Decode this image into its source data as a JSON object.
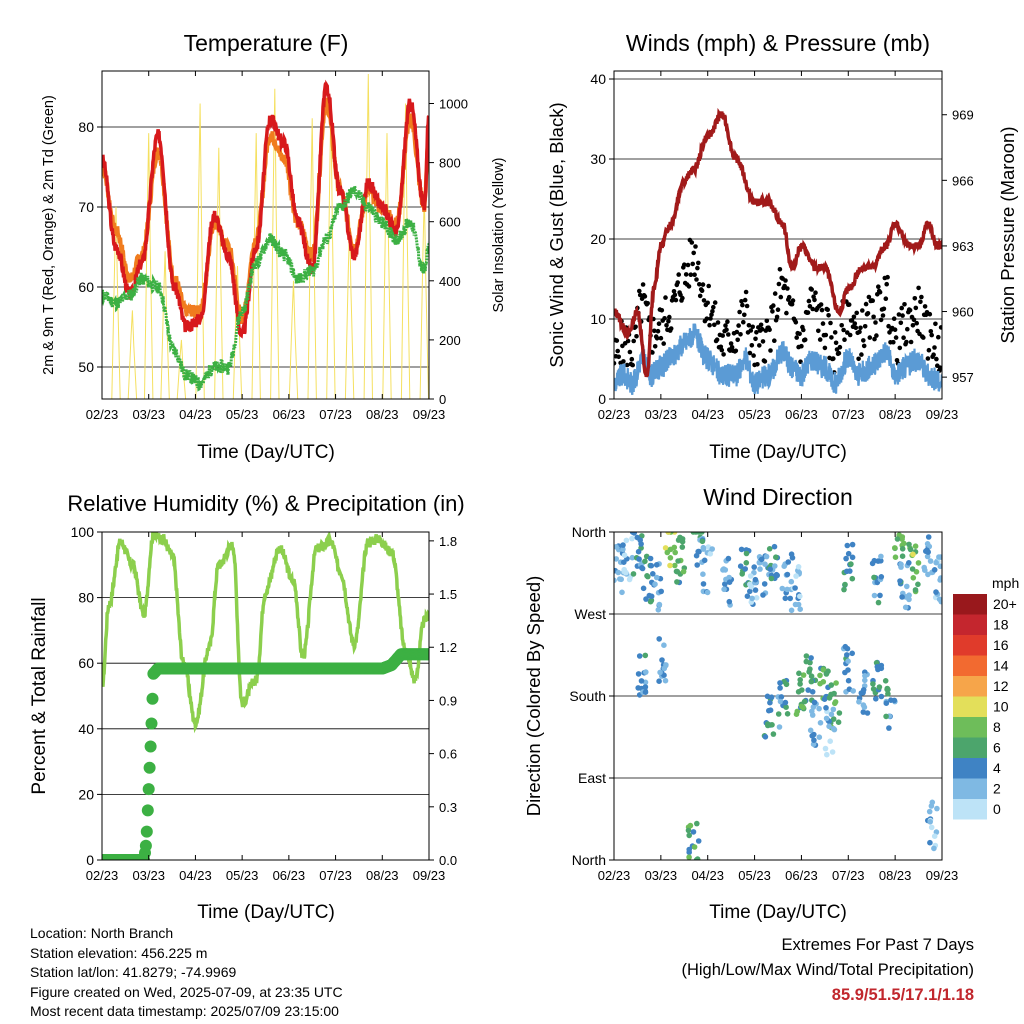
{
  "x_ticks": [
    "02/23",
    "03/23",
    "04/23",
    "05/23",
    "06/23",
    "07/23",
    "08/23",
    "09/23"
  ],
  "colors": {
    "temp_2m": "#d7191c",
    "temp_9m": "#f07c1e",
    "dewpoint": "#3cb043",
    "insolation": "#f5e060",
    "gust": "#000000",
    "wind": "#5b9bd5",
    "pressure": "#a11a1a",
    "rh": "#8ccf4d",
    "precip": "#3cb043",
    "extremes_text": "#c1272d"
  },
  "info": {
    "location": "Location: North Branch",
    "elevation": "Station elevation: 456.225 m",
    "latlon": "Station lat/lon: 41.8279; -74.9969",
    "created": "Figure created on Wed, 2025-07-09, at 23:35 UTC",
    "recent": "Most recent data timestamp: 2025/07/09 23:15:00"
  },
  "extremes": {
    "title": "Extremes For Past 7 Days",
    "subtitle": "(High/Low/Max Wind/Total Precipitation)",
    "values": "85.9/51.5/17.1/1.18"
  },
  "chart_data": [
    {
      "type": "line",
      "title": "Temperature (F)",
      "xlabel": "Time (Day/UTC)",
      "ylabel": "2m & 9m T (Red, Orange) & 2m Td (Green)",
      "y2label": "Solar Insolation (Yellow)",
      "ylim": [
        46,
        87
      ],
      "y2lim": [
        0,
        1110
      ],
      "yticks": [
        50,
        60,
        70,
        80
      ],
      "y2ticks": [
        0,
        200,
        400,
        600,
        800,
        1000
      ],
      "grid": true,
      "series": [
        {
          "key": "temp_2m",
          "x": [
            0,
            0.3,
            0.6,
            0.85,
            1.2,
            1.55,
            1.8,
            2.1,
            2.4,
            2.7,
            3.0,
            3.3,
            3.6,
            3.9,
            4.2,
            4.5,
            4.8,
            5.1,
            5.4,
            5.7,
            6.0,
            6.3,
            6.6,
            6.9,
            7.0
          ],
          "y": [
            76,
            65,
            59,
            63,
            79,
            60,
            55,
            56,
            69,
            64,
            54,
            65,
            81,
            78,
            68,
            62,
            85,
            72,
            64,
            73,
            70,
            67,
            83,
            70,
            82
          ]
        },
        {
          "key": "temp_9m",
          "x": [
            0,
            0.3,
            0.6,
            0.85,
            1.2,
            1.55,
            1.8,
            2.1,
            2.4,
            2.7,
            3.0,
            3.3,
            3.6,
            3.9,
            4.2,
            4.5,
            4.8,
            5.1,
            5.4,
            5.7,
            6.0,
            6.3,
            6.6,
            6.9,
            7.0
          ],
          "y": [
            75,
            67,
            61,
            64,
            77,
            61,
            57,
            57,
            68,
            65,
            56,
            66,
            79,
            76,
            68,
            64,
            83,
            72,
            65,
            72,
            70,
            68,
            81,
            70,
            80
          ]
        },
        {
          "key": "dewpoint",
          "x": [
            0,
            0.3,
            0.6,
            0.85,
            1.2,
            1.55,
            1.8,
            2.1,
            2.4,
            2.7,
            3.0,
            3.3,
            3.6,
            3.9,
            4.2,
            4.5,
            4.8,
            5.1,
            5.4,
            5.7,
            6.0,
            6.3,
            6.6,
            6.9,
            7.0
          ],
          "y": [
            59,
            58,
            59,
            61,
            60,
            52,
            49,
            48,
            50,
            50,
            57,
            63,
            66,
            64,
            61,
            62,
            66,
            70,
            72,
            70,
            68,
            66,
            68,
            62,
            65
          ]
        },
        {
          "key": "insolation",
          "x": [
            0.3,
            0.65,
            1.0,
            1.35,
            1.7,
            2.1,
            2.5,
            2.9,
            3.3,
            3.7,
            4.1,
            4.5,
            4.9,
            5.3,
            5.7,
            6.1,
            6.5,
            6.9
          ],
          "y": [
            650,
            300,
            900,
            500,
            200,
            1000,
            850,
            450,
            900,
            1050,
            400,
            950,
            1000,
            600,
            1100,
            900,
            1000,
            700
          ]
        }
      ]
    },
    {
      "type": "line",
      "title": "Winds (mph) & Pressure (mb)",
      "xlabel": "Time (Day/UTC)",
      "ylabel": "Sonic Wind & Gust (Blue, Black)",
      "y2label": "Station Pressure (Maroon)",
      "ylim": [
        0,
        41
      ],
      "y2lim": [
        956,
        971
      ],
      "yticks": [
        0,
        10,
        20,
        30,
        40
      ],
      "y2ticks": [
        957,
        960,
        963,
        966,
        969
      ],
      "grid": true,
      "series": [
        {
          "key": "pressure",
          "x": [
            0,
            0.3,
            0.5,
            0.7,
            0.85,
            1.0,
            1.2,
            1.5,
            1.7,
            2.0,
            2.3,
            2.6,
            3.0,
            3.3,
            3.6,
            3.8,
            4.0,
            4.3,
            4.5,
            4.8,
            5.0,
            5.3,
            5.5,
            5.8,
            6.0,
            6.3,
            6.5,
            6.7,
            6.9,
            7.0
          ],
          "y": [
            960,
            959,
            960,
            957,
            961,
            963,
            964,
            966,
            966.5,
            968,
            969,
            967,
            965,
            965,
            964,
            962,
            963,
            962,
            962,
            960,
            961,
            962,
            962,
            963,
            964,
            963,
            963,
            964,
            963,
            963
          ]
        },
        {
          "key": "gust",
          "x": [
            0,
            0.2,
            0.4,
            0.6,
            0.8,
            1.0,
            1.2,
            1.5,
            1.7,
            2.0,
            2.3,
            2.6,
            2.8,
            3.0,
            3.3,
            3.6,
            3.8,
            4.0,
            4.2,
            4.5,
            4.7,
            5.0,
            5.2,
            5.5,
            5.8,
            6.0,
            6.2,
            6.5,
            6.7,
            7.0
          ],
          "y": [
            5,
            7,
            6,
            12,
            8,
            9,
            11,
            15,
            18,
            12,
            7,
            8,
            11,
            6,
            8,
            14,
            10,
            7,
            12,
            9,
            6,
            11,
            8,
            10,
            13,
            7,
            9,
            11,
            8,
            6
          ]
        },
        {
          "key": "wind",
          "x": [
            0,
            0.2,
            0.4,
            0.6,
            0.8,
            1.0,
            1.2,
            1.5,
            1.7,
            2.0,
            2.3,
            2.6,
            2.8,
            3.0,
            3.3,
            3.6,
            3.8,
            4.0,
            4.2,
            4.5,
            4.7,
            5.0,
            5.2,
            5.5,
            5.8,
            6.0,
            6.2,
            6.5,
            6.7,
            7.0
          ],
          "y": [
            2,
            3,
            2,
            5,
            3,
            4,
            5,
            7,
            8,
            5,
            3,
            3,
            5,
            2,
            3,
            6,
            4,
            3,
            5,
            4,
            2,
            5,
            3,
            4,
            6,
            3,
            4,
            5,
            3,
            2
          ]
        }
      ]
    },
    {
      "type": "line",
      "title": "Relative Humidity (%) & Precipitation (in)",
      "xlabel": "Time (Day/UTC)",
      "ylabel": "Percent & Total Rainfall",
      "ylim": [
        0,
        100
      ],
      "y2lim": [
        0,
        1.85
      ],
      "yticks": [
        0,
        20,
        40,
        60,
        80,
        100
      ],
      "y2ticks": [
        0.0,
        0.3,
        0.6,
        0.9,
        1.2,
        1.5,
        1.8
      ],
      "y2ticklabels": [
        "0.0",
        "0.3",
        "0.6",
        "0.9",
        "1.2",
        "1.5",
        "1.8"
      ],
      "grid": true,
      "series": [
        {
          "key": "rh",
          "x": [
            0,
            0.15,
            0.4,
            0.65,
            0.9,
            1.1,
            1.3,
            1.5,
            1.75,
            2.0,
            2.3,
            2.5,
            2.8,
            3.0,
            3.3,
            3.5,
            3.8,
            4.1,
            4.3,
            4.6,
            4.9,
            5.1,
            5.4,
            5.7,
            5.9,
            6.2,
            6.5,
            6.7,
            6.9,
            7.0
          ],
          "y": [
            53,
            78,
            97,
            90,
            75,
            99,
            98,
            93,
            60,
            42,
            65,
            90,
            96,
            48,
            55,
            82,
            95,
            85,
            62,
            95,
            97,
            88,
            66,
            97,
            98,
            94,
            64,
            55,
            73,
            75
          ]
        },
        {
          "key": "precip",
          "x": [
            0,
            0.5,
            0.9,
            0.95,
            1.0,
            1.05,
            1.1,
            1.2,
            2.0,
            3.0,
            4.0,
            5.0,
            6.0,
            6.2,
            6.4,
            6.6,
            7.0
          ],
          "y": [
            0,
            0,
            0,
            0.1,
            0.4,
            0.7,
            1.05,
            1.08,
            1.08,
            1.08,
            1.08,
            1.08,
            1.08,
            1.1,
            1.16,
            1.16,
            1.16
          ]
        }
      ]
    },
    {
      "type": "scatter",
      "title": "Wind Direction",
      "xlabel": "Time (Day/UTC)",
      "ylabel": "Direction (Colored By Speed)",
      "ylim": [
        0,
        360
      ],
      "ytick_values": [
        0,
        90,
        180,
        270,
        360
      ],
      "yticks": [
        "North",
        "East",
        "South",
        "West",
        "North"
      ],
      "grid": true,
      "legend": {
        "title": "mph",
        "labels": [
          "20+",
          "18",
          "16",
          "14",
          "12",
          "10",
          "8",
          "6",
          "4",
          "2",
          "0"
        ],
        "colors": [
          "#99181c",
          "#c4262e",
          "#e03b2b",
          "#f26a30",
          "#f6a54a",
          "#e3df5a",
          "#6ebd5a",
          "#4ca56c",
          "#3f83c4",
          "#7fb9e3",
          "#bde3f7"
        ]
      },
      "series": [
        {
          "name": "",
          "x": [
            0.1,
            0.3,
            0.5,
            0.7,
            0.9,
            1.2,
            1.4,
            1.8,
            2.0,
            2.4,
            2.8,
            3.0,
            3.2,
            3.4,
            3.7,
            3.9,
            4.2,
            4.5,
            4.7,
            5.0,
            5.3,
            5.6,
            5.9,
            6.1,
            6.4,
            6.7,
            6.9,
            0.6,
            1.0,
            1.7,
            3.3,
            3.6,
            4.0,
            4.3,
            4.6,
            5.0,
            5.6,
            6.2,
            6.8
          ],
          "y": [
            320,
            330,
            340,
            310,
            300,
            345,
            330,
            350,
            320,
            305,
            315,
            300,
            310,
            320,
            310,
            300,
            200,
            190,
            170,
            210,
            180,
            190,
            170,
            330,
            320,
            340,
            310,
            200,
            220,
            15,
            160,
            170,
            180,
            150,
            140,
            320,
            310,
            300,
            40
          ],
          "speed": [
            3,
            2,
            4,
            5,
            3,
            9,
            6,
            4,
            2,
            3,
            5,
            2,
            3,
            4,
            3,
            2,
            5,
            6,
            7,
            4,
            3,
            5,
            4,
            6,
            8,
            3,
            2,
            4,
            3,
            6,
            5,
            4,
            6,
            3,
            2,
            5,
            4,
            3,
            2
          ]
        }
      ]
    }
  ]
}
